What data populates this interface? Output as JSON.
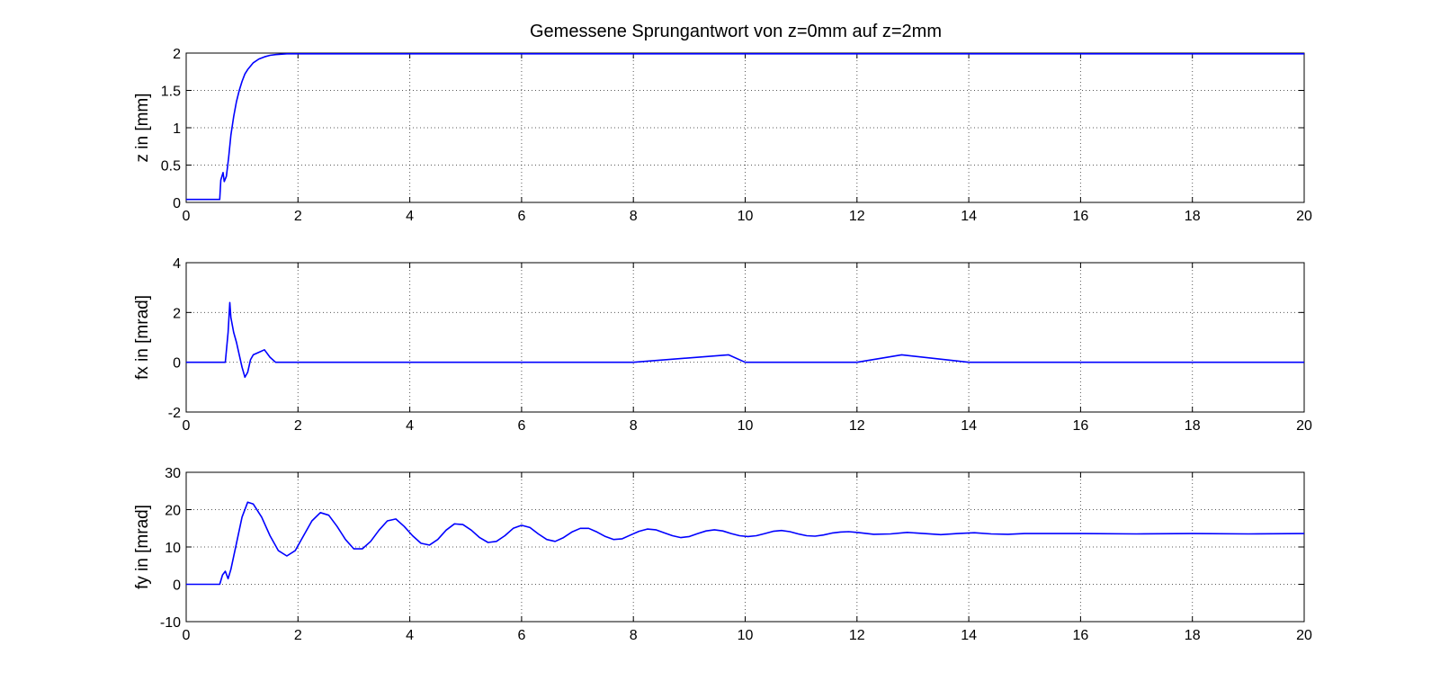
{
  "chart_data": [
    {
      "type": "line",
      "title": "Gemessene Sprungantwort von z=0mm auf z=2mm",
      "xlabel": "",
      "ylabel": "z in [mm]",
      "xlim": [
        0,
        20
      ],
      "ylim": [
        0,
        2
      ],
      "xticks": [
        "0",
        "2",
        "4",
        "6",
        "8",
        "10",
        "12",
        "14",
        "16",
        "18",
        "20"
      ],
      "yticks": [
        "0",
        "0.5",
        "1",
        "1.5",
        "2"
      ],
      "grid": true,
      "color": "#0000ff",
      "series": [
        {
          "x": [
            0,
            0.6,
            0.62,
            0.66,
            0.68,
            0.72,
            0.76,
            0.8,
            0.85,
            0.9,
            0.95,
            1.0,
            1.05,
            1.1,
            1.2,
            1.3,
            1.4,
            1.5,
            1.6,
            1.8,
            2.0,
            2.5,
            3,
            4,
            5,
            6,
            8,
            10,
            12,
            14,
            16,
            18,
            20
          ],
          "y": [
            0.04,
            0.04,
            0.3,
            0.4,
            0.28,
            0.35,
            0.6,
            0.9,
            1.15,
            1.35,
            1.5,
            1.62,
            1.72,
            1.78,
            1.87,
            1.92,
            1.95,
            1.97,
            1.98,
            1.99,
            1.99,
            1.99,
            1.99,
            1.99,
            1.99,
            1.99,
            1.99,
            1.99,
            1.99,
            1.99,
            1.99,
            1.99,
            1.99
          ]
        }
      ]
    },
    {
      "type": "line",
      "title": "",
      "xlabel": "",
      "ylabel": "fx in [mrad]",
      "xlim": [
        0,
        20
      ],
      "ylim": [
        -2,
        4
      ],
      "xticks": [
        "0",
        "2",
        "4",
        "6",
        "8",
        "10",
        "12",
        "14",
        "16",
        "18",
        "20"
      ],
      "yticks": [
        "-2",
        "0",
        "2",
        "4"
      ],
      "grid": true,
      "color": "#0000ff",
      "series": [
        {
          "x": [
            0,
            0.7,
            0.75,
            0.78,
            0.8,
            0.85,
            0.9,
            0.95,
            1.0,
            1.05,
            1.1,
            1.15,
            1.2,
            1.3,
            1.4,
            1.5,
            1.6,
            2,
            4,
            6,
            8,
            9.7,
            10,
            12,
            12.8,
            14,
            16,
            18,
            20
          ],
          "y": [
            0,
            0,
            1.2,
            2.4,
            1.8,
            1.2,
            0.8,
            0.3,
            -0.2,
            -0.6,
            -0.4,
            0.1,
            0.3,
            0.4,
            0.5,
            0.2,
            0,
            0,
            0,
            0,
            0,
            0.3,
            0,
            0,
            0.3,
            0,
            0,
            0,
            0
          ]
        }
      ]
    },
    {
      "type": "line",
      "title": "",
      "xlabel": "",
      "ylabel": "fy in [mrad]",
      "xlim": [
        0,
        20
      ],
      "ylim": [
        -10,
        30
      ],
      "xticks": [
        "0",
        "2",
        "4",
        "6",
        "8",
        "10",
        "12",
        "14",
        "16",
        "18",
        "20"
      ],
      "yticks": [
        "-10",
        "0",
        "10",
        "20",
        "30"
      ],
      "grid": true,
      "color": "#0000ff",
      "series": [
        {
          "x": [
            0,
            0.6,
            0.65,
            0.7,
            0.75,
            0.8,
            0.9,
            1.0,
            1.1,
            1.2,
            1.35,
            1.5,
            1.65,
            1.8,
            1.95,
            2.1,
            2.25,
            2.4,
            2.55,
            2.7,
            2.85,
            3.0,
            3.15,
            3.3,
            3.45,
            3.6,
            3.75,
            3.9,
            4.05,
            4.2,
            4.35,
            4.5,
            4.65,
            4.8,
            4.95,
            5.1,
            5.25,
            5.4,
            5.55,
            5.7,
            5.85,
            6.0,
            6.15,
            6.3,
            6.45,
            6.6,
            6.75,
            6.9,
            7.05,
            7.2,
            7.35,
            7.5,
            7.65,
            7.8,
            7.95,
            8.1,
            8.25,
            8.4,
            8.55,
            8.7,
            8.85,
            9.0,
            9.15,
            9.3,
            9.45,
            9.6,
            9.75,
            9.9,
            10.05,
            10.2,
            10.35,
            10.5,
            10.65,
            10.8,
            10.95,
            11.1,
            11.25,
            11.4,
            11.55,
            11.7,
            11.85,
            12.0,
            12.3,
            12.6,
            12.9,
            13.2,
            13.5,
            13.8,
            14.1,
            14.4,
            14.7,
            15,
            16,
            17,
            18,
            19,
            20
          ],
          "y": [
            0,
            0,
            2.5,
            3.5,
            1.5,
            4,
            11,
            18,
            22,
            21.5,
            18,
            13,
            9,
            7.6,
            9,
            13,
            17,
            19.2,
            18.5,
            15.5,
            12,
            9.5,
            9.5,
            11.5,
            14.5,
            17,
            17.5,
            15.5,
            13,
            11,
            10.5,
            12,
            14.5,
            16.2,
            16,
            14.5,
            12.5,
            11.2,
            11.5,
            13,
            15,
            15.8,
            15.2,
            13.5,
            12,
            11.5,
            12.5,
            14,
            15,
            15,
            14,
            12.8,
            12,
            12.2,
            13.2,
            14.2,
            14.8,
            14.6,
            13.8,
            13,
            12.5,
            12.8,
            13.6,
            14.3,
            14.6,
            14.3,
            13.6,
            13,
            12.8,
            13,
            13.6,
            14.2,
            14.4,
            14.1,
            13.5,
            13,
            12.9,
            13.2,
            13.7,
            14,
            14.1,
            13.9,
            13.4,
            13.5,
            13.9,
            13.6,
            13.3,
            13.6,
            13.8,
            13.5,
            13.4,
            13.6,
            13.6,
            13.5,
            13.6,
            13.5,
            13.6
          ]
        }
      ]
    }
  ]
}
